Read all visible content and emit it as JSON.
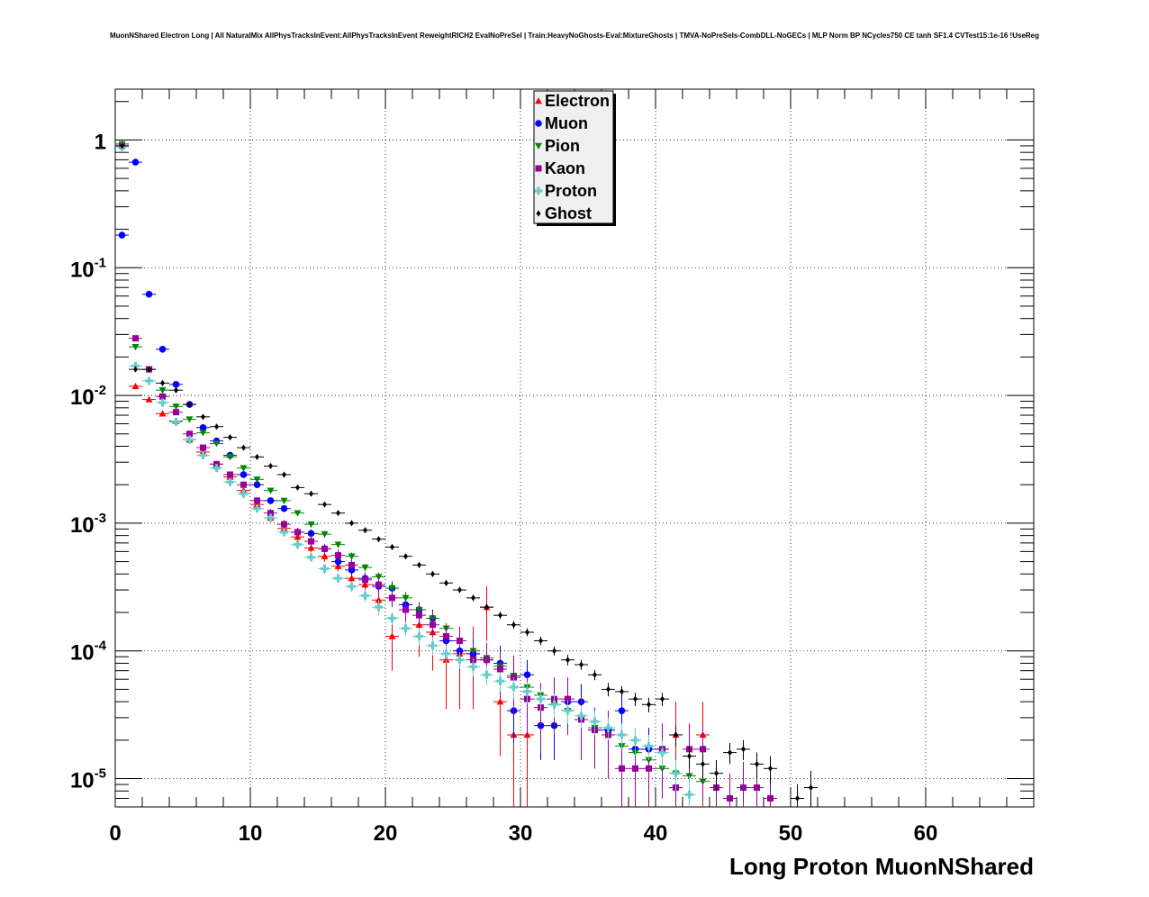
{
  "chart_data": {
    "type": "scatter",
    "title": "MuonNShared Electron Long | All NaturalMix AllPhysTracksInEvent:AllPhysTracksInEvent ReweightRICH2 EvalNoPreSel | Train:HeavyNoGhosts-Eval:MixtureGhosts | TMVA-NoPreSels-CombDLL-NoGECs | MLP Norm BP NCycles750 CE tanh SF1.4 CVTest15:1e-16 !UseReg",
    "xlabel": "Long Proton MuonNShared",
    "ylabel": "",
    "xlim": [
      0,
      68
    ],
    "ylim": [
      6e-06,
      2.5
    ],
    "yscale": "log",
    "grid": true,
    "legend_position": "top-center",
    "x_ticks": [
      0,
      10,
      20,
      30,
      40,
      50,
      60
    ],
    "x_tick_labels": [
      "0",
      "10",
      "20",
      "30",
      "40",
      "50",
      "60"
    ],
    "y_ticks": [
      1e-05,
      0.0001,
      0.001,
      0.01,
      0.1,
      1
    ],
    "y_tick_labels": [
      {
        "base": "10",
        "exp": "-5"
      },
      {
        "base": "10",
        "exp": "-4"
      },
      {
        "base": "10",
        "exp": "-3"
      },
      {
        "base": "10",
        "exp": "-2"
      },
      {
        "base": "10",
        "exp": "-1"
      },
      {
        "base": "1",
        "exp": ""
      }
    ],
    "series": [
      {
        "name": "Electron",
        "color": "#ff0000",
        "marker": "triangle-up",
        "x": [
          0,
          1,
          2,
          3,
          4,
          5,
          6,
          7,
          8,
          9,
          10,
          11,
          12,
          13,
          14,
          15,
          16,
          17,
          18,
          19,
          20,
          21,
          22,
          23,
          24,
          25,
          26,
          27,
          28,
          29,
          30,
          41,
          43
        ],
        "y": [
          0.93,
          0.0118,
          0.0093,
          0.0072,
          0.0063,
          0.0045,
          0.0036,
          0.0029,
          0.0023,
          0.0018,
          0.0014,
          0.0011,
          0.00091,
          0.00078,
          0.00064,
          0.00055,
          0.00046,
          0.00037,
          0.00033,
          0.00025,
          0.00013,
          0.00021,
          0.00016,
          0.00014,
          8.5e-05,
          9.5e-05,
          9.5e-05,
          0.00022,
          4e-05,
          2.2e-05,
          2.2e-05,
          2.2e-05,
          2.2e-05
        ],
        "err": [
          0.01,
          0.0004,
          0.0003,
          0.00025,
          0.0002,
          0.00015,
          0.00012,
          0.0001,
          9e-05,
          8e-05,
          7e-05,
          6e-05,
          5e-05,
          5e-05,
          5e-05,
          5e-05,
          4e-05,
          4e-05,
          4e-05,
          4e-05,
          6e-05,
          8e-05,
          7e-05,
          7e-05,
          5e-05,
          6e-05,
          6e-05,
          0.0001,
          2.5e-05,
          1.8e-05,
          1.8e-05,
          1.8e-05,
          1.8e-05
        ]
      },
      {
        "name": "Muon",
        "color": "#0000ff",
        "marker": "circle",
        "x": [
          0,
          1,
          2,
          3,
          4,
          5,
          6,
          7,
          8,
          9,
          10,
          11,
          12,
          13,
          14,
          15,
          16,
          17,
          18,
          19,
          20,
          21,
          22,
          23,
          24,
          25,
          26,
          27,
          28,
          29,
          30,
          31,
          32,
          33,
          34,
          35,
          36,
          37,
          38,
          39,
          40,
          41
        ],
        "y": [
          0.18,
          0.67,
          0.062,
          0.023,
          0.0122,
          0.0085,
          0.0056,
          0.0044,
          0.0034,
          0.0024,
          0.002,
          0.0015,
          0.0013,
          0.00085,
          0.00083,
          0.00063,
          0.0005,
          0.00043,
          0.00037,
          0.00032,
          0.00031,
          0.00023,
          0.00021,
          0.00018,
          0.00012,
          0.0001,
          9.5e-05,
          8.5e-05,
          8e-05,
          3.4e-05,
          6.5e-05,
          2.6e-05,
          2.6e-05,
          4e-05,
          4e-05,
          2.4e-05,
          2.4e-05,
          3.4e-05,
          1.7e-05,
          1.7e-05,
          1.7e-05,
          8.5e-06
        ],
        "err": [
          0.005,
          0.008,
          0.001,
          0.0006,
          0.0004,
          0.0003,
          0.00025,
          0.0002,
          0.00015,
          0.00012,
          0.0001,
          9e-05,
          8e-05,
          7e-05,
          6e-05,
          5e-05,
          5e-05,
          4e-05,
          4e-05,
          4e-05,
          4e-05,
          3e-05,
          3e-05,
          3e-05,
          3e-05,
          3e-05,
          3e-05,
          3e-05,
          3e-05,
          1.5e-05,
          2e-05,
          1.2e-05,
          1.2e-05,
          1.5e-05,
          1.5e-05,
          1e-05,
          1e-05,
          1.2e-05,
          8e-06,
          8e-06,
          8e-06,
          5e-06
        ]
      },
      {
        "name": "Pion",
        "color": "#008800",
        "marker": "triangle-down",
        "x": [
          0,
          1,
          2,
          3,
          4,
          5,
          6,
          7,
          8,
          9,
          10,
          11,
          12,
          13,
          14,
          15,
          16,
          17,
          18,
          19,
          20,
          21,
          22,
          23,
          24,
          25,
          26,
          27,
          28,
          29,
          30,
          31,
          32,
          33,
          34,
          35,
          36,
          37,
          38,
          39,
          40,
          41,
          42,
          43
        ],
        "y": [
          0.93,
          0.024,
          0.016,
          0.011,
          0.0082,
          0.0065,
          0.0051,
          0.0042,
          0.0033,
          0.0027,
          0.0022,
          0.0018,
          0.0015,
          0.0012,
          0.00098,
          0.00082,
          0.00068,
          0.00055,
          0.00045,
          0.00038,
          0.00031,
          0.00026,
          0.00021,
          0.00018,
          0.00015,
          0.00012,
          0.0001,
          8.8e-05,
          7.6e-05,
          6.4e-05,
          5.2e-05,
          4.5e-05,
          3.8e-05,
          3.4e-05,
          2.9e-05,
          2.5e-05,
          2.2e-05,
          1.8e-05,
          1.6e-05,
          1.4e-05,
          1.2e-05,
          1.1e-05,
          1.05e-05,
          9.5e-06
        ],
        "err": [
          0.01,
          0.0005,
          0.0004,
          0.0003,
          0.00025,
          0.0002,
          0.00018,
          0.00015,
          0.00012,
          0.0001,
          9e-05,
          8e-05,
          7e-05,
          6e-05,
          5e-05,
          5e-05,
          4e-05,
          4e-05,
          3e-05,
          3e-05,
          2.5e-05,
          2e-05,
          2e-05,
          1.8e-05,
          1.5e-05,
          1.3e-05,
          1.2e-05,
          1.1e-05,
          1e-05,
          9e-06,
          8e-06,
          7e-06,
          6e-06,
          6e-06,
          5e-06,
          5e-06,
          4e-06,
          4e-06,
          4e-06,
          3e-06,
          3e-06,
          3e-06,
          3e-06,
          3e-06
        ]
      },
      {
        "name": "Kaon",
        "color": "#990099",
        "marker": "square",
        "x": [
          0,
          1,
          2,
          3,
          4,
          5,
          6,
          7,
          8,
          9,
          10,
          11,
          12,
          13,
          14,
          15,
          16,
          17,
          18,
          19,
          20,
          21,
          22,
          23,
          24,
          25,
          26,
          27,
          28,
          29,
          30,
          31,
          32,
          33,
          34,
          35,
          36,
          37,
          38,
          39,
          40,
          41,
          42,
          43,
          44,
          45,
          46,
          47,
          48
        ],
        "y": [
          0.9,
          0.028,
          0.016,
          0.0098,
          0.0074,
          0.005,
          0.0039,
          0.0029,
          0.0024,
          0.002,
          0.0015,
          0.0012,
          0.00098,
          0.00085,
          0.00072,
          0.00063,
          0.00056,
          0.00047,
          0.00036,
          0.00033,
          0.00026,
          0.00021,
          0.00019,
          0.00016,
          0.00013,
          0.00012,
          8.5e-05,
          8.5e-05,
          7.2e-05,
          6.2e-05,
          4.2e-05,
          3.6e-05,
          4.2e-05,
          4.2e-05,
          2.9e-05,
          2.4e-05,
          2.2e-05,
          1.2e-05,
          1.2e-05,
          1.2e-05,
          1.7e-05,
          8.5e-06,
          1.7e-05,
          1.7e-05,
          8.5e-06,
          7e-06,
          8.5e-06,
          8.5e-06,
          7e-06
        ],
        "err": [
          0.01,
          0.0008,
          0.0005,
          0.0004,
          0.0003,
          0.00025,
          0.0002,
          0.00015,
          0.00013,
          0.00012,
          0.0001,
          9e-05,
          8e-05,
          7e-05,
          7e-05,
          6e-05,
          6e-05,
          5e-05,
          5e-05,
          5e-05,
          4e-05,
          4e-05,
          4e-05,
          4e-05,
          3e-05,
          3e-05,
          3e-05,
          3e-05,
          3e-05,
          3e-05,
          2e-05,
          2e-05,
          2e-05,
          2e-05,
          1.5e-05,
          1.2e-05,
          1.2e-05,
          8e-06,
          8e-06,
          8e-06,
          1e-05,
          5e-06,
          1e-05,
          1e-05,
          5e-06,
          4e-06,
          5e-06,
          5e-06,
          4e-06
        ]
      },
      {
        "name": "Proton",
        "color": "#66cccc",
        "marker": "cross",
        "x": [
          0,
          1,
          2,
          3,
          4,
          5,
          6,
          7,
          8,
          9,
          10,
          11,
          12,
          13,
          14,
          15,
          16,
          17,
          18,
          19,
          20,
          21,
          22,
          23,
          24,
          25,
          26,
          27,
          28,
          29,
          30,
          31,
          32,
          33,
          34,
          35,
          36,
          37,
          38,
          39,
          40,
          41,
          42
        ],
        "y": [
          0.88,
          0.017,
          0.013,
          0.0088,
          0.0062,
          0.0045,
          0.0034,
          0.0027,
          0.0021,
          0.0017,
          0.0013,
          0.0011,
          0.00085,
          0.00068,
          0.00054,
          0.00044,
          0.00037,
          0.00032,
          0.00027,
          0.00022,
          0.00018,
          0.00015,
          0.00013,
          0.00011,
          9.5e-05,
          8.5e-05,
          7.5e-05,
          6.5e-05,
          5.8e-05,
          5.2e-05,
          4.8e-05,
          4.2e-05,
          3.8e-05,
          3.4e-05,
          3.1e-05,
          2.8e-05,
          2.5e-05,
          2.2e-05,
          2e-05,
          1.8e-05,
          1.6e-05,
          1.1e-05,
          7.5e-06
        ],
        "err": [
          0.01,
          0.0005,
          0.0004,
          0.0003,
          0.00025,
          0.0002,
          0.00015,
          0.00012,
          0.0001,
          9e-05,
          8e-05,
          7e-05,
          6e-05,
          5e-05,
          4e-05,
          4e-05,
          3e-05,
          3e-05,
          3e-05,
          3e-05,
          2e-05,
          2e-05,
          2e-05,
          1.8e-05,
          1.5e-05,
          1.3e-05,
          1.2e-05,
          1.1e-05,
          1e-05,
          1e-05,
          9e-06,
          8e-06,
          8e-06,
          7e-06,
          6e-06,
          6e-06,
          5e-06,
          5e-06,
          5e-06,
          4e-06,
          4e-06,
          3e-06,
          3e-06
        ]
      },
      {
        "name": "Ghost",
        "color": "#000000",
        "marker": "diamond",
        "x": [
          0,
          1,
          2,
          3,
          4,
          5,
          6,
          7,
          8,
          9,
          10,
          11,
          12,
          13,
          14,
          15,
          16,
          17,
          18,
          19,
          20,
          21,
          22,
          23,
          24,
          25,
          26,
          27,
          28,
          29,
          30,
          31,
          32,
          33,
          34,
          35,
          36,
          37,
          38,
          39,
          40,
          41,
          42,
          43,
          44,
          45,
          46,
          47,
          48,
          50,
          51
        ],
        "y": [
          0.9,
          0.016,
          0.016,
          0.0125,
          0.011,
          0.0085,
          0.0068,
          0.0057,
          0.0047,
          0.0039,
          0.0033,
          0.0028,
          0.0024,
          0.0019,
          0.0017,
          0.0014,
          0.0012,
          0.001,
          0.00088,
          0.00075,
          0.00065,
          0.00055,
          0.00047,
          0.0004,
          0.00034,
          0.0003,
          0.00026,
          0.00022,
          0.00019,
          0.00016,
          0.00014,
          0.00012,
          0.0001,
          8.5e-05,
          7.8e-05,
          6.5e-05,
          5e-05,
          4.8e-05,
          4.2e-05,
          3.8e-05,
          4.2e-05,
          2.2e-05,
          1.5e-05,
          1.3e-05,
          1.1e-05,
          1.6e-05,
          1.7e-05,
          1.3e-05,
          1.2e-05,
          7e-06,
          8.5e-06
        ],
        "err": [
          0.01,
          0.0004,
          0.0004,
          0.0003,
          0.00028,
          0.00022,
          0.00018,
          0.00015,
          0.00013,
          0.00011,
          0.0001,
          9e-05,
          8e-05,
          7e-05,
          6e-05,
          5e-05,
          5e-05,
          4e-05,
          4e-05,
          3e-05,
          3e-05,
          2.5e-05,
          2.2e-05,
          2e-05,
          1.8e-05,
          1.6e-05,
          1.5e-05,
          1.3e-05,
          1.2e-05,
          1.1e-05,
          1e-05,
          9e-06,
          8e-06,
          8e-06,
          7e-06,
          6e-06,
          6e-06,
          5e-06,
          5e-06,
          5e-06,
          5e-06,
          4e-06,
          3e-06,
          3e-06,
          3e-06,
          3e-06,
          3e-06,
          3e-06,
          3e-06,
          2e-06,
          3e-06
        ]
      }
    ]
  }
}
